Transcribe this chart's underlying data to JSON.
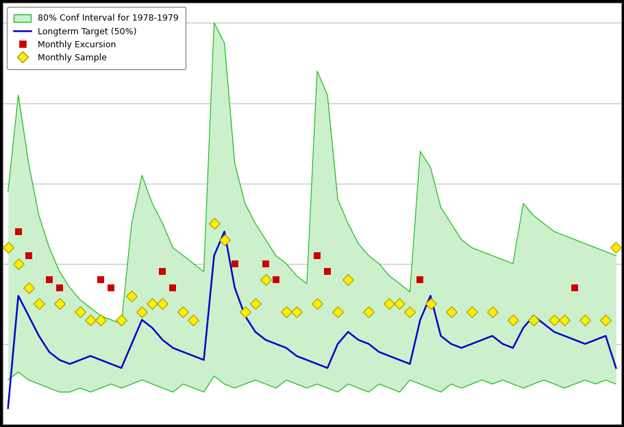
{
  "background_color": "#000000",
  "plot_bg": "#ffffff",
  "band_fill_color": "#ccf0cc",
  "band_edge_color": "#22bb22",
  "line_color": "#0000cc",
  "excursion_color": "#cc0000",
  "sample_facecolor": "#ffee00",
  "sample_edgecolor": "#999900",
  "grid_color": "#bbbbbb",
  "legend_labels": [
    "80% Conf Interval for 1978-1979",
    "Longterm Target (50%)",
    "Monthly Excursion",
    "Monthly Sample"
  ],
  "upper_band": [
    0.58,
    0.82,
    0.65,
    0.52,
    0.44,
    0.38,
    0.34,
    0.31,
    0.29,
    0.27,
    0.26,
    0.25,
    0.5,
    0.62,
    0.55,
    0.5,
    0.44,
    0.42,
    0.4,
    0.38,
    1.0,
    0.95,
    0.65,
    0.55,
    0.5,
    0.46,
    0.42,
    0.4,
    0.37,
    0.35,
    0.88,
    0.82,
    0.56,
    0.5,
    0.45,
    0.42,
    0.4,
    0.37,
    0.35,
    0.33,
    0.68,
    0.64,
    0.54,
    0.5,
    0.46,
    0.44,
    0.43,
    0.42,
    0.41,
    0.4,
    0.55,
    0.52,
    0.5,
    0.48,
    0.47,
    0.46,
    0.45,
    0.44,
    0.43,
    0.42
  ],
  "lower_band": [
    0.11,
    0.13,
    0.11,
    0.1,
    0.09,
    0.08,
    0.08,
    0.09,
    0.08,
    0.09,
    0.1,
    0.09,
    0.1,
    0.11,
    0.1,
    0.09,
    0.08,
    0.1,
    0.09,
    0.08,
    0.12,
    0.1,
    0.09,
    0.1,
    0.11,
    0.1,
    0.09,
    0.11,
    0.1,
    0.09,
    0.1,
    0.09,
    0.08,
    0.1,
    0.09,
    0.08,
    0.1,
    0.09,
    0.08,
    0.11,
    0.1,
    0.09,
    0.08,
    0.1,
    0.09,
    0.1,
    0.11,
    0.1,
    0.11,
    0.1,
    0.09,
    0.1,
    0.11,
    0.1,
    0.09,
    0.1,
    0.11,
    0.1,
    0.11,
    0.1
  ],
  "blue_line": [
    0.04,
    0.32,
    0.27,
    0.22,
    0.18,
    0.16,
    0.15,
    0.16,
    0.17,
    0.16,
    0.15,
    0.14,
    0.2,
    0.26,
    0.24,
    0.21,
    0.19,
    0.18,
    0.17,
    0.16,
    0.42,
    0.48,
    0.34,
    0.27,
    0.23,
    0.21,
    0.2,
    0.19,
    0.17,
    0.16,
    0.15,
    0.14,
    0.2,
    0.23,
    0.21,
    0.2,
    0.18,
    0.17,
    0.16,
    0.15,
    0.26,
    0.32,
    0.22,
    0.2,
    0.19,
    0.2,
    0.21,
    0.22,
    0.2,
    0.19,
    0.24,
    0.27,
    0.25,
    0.23,
    0.22,
    0.21,
    0.2,
    0.21,
    0.22,
    0.14
  ],
  "excursion_x": [
    1,
    2,
    4,
    5,
    9,
    10,
    15,
    16,
    22,
    25,
    26,
    30,
    31,
    40,
    55
  ],
  "excursion_y": [
    0.48,
    0.42,
    0.36,
    0.34,
    0.36,
    0.34,
    0.38,
    0.34,
    0.4,
    0.4,
    0.36,
    0.42,
    0.38,
    0.36,
    0.34
  ],
  "sample_x": [
    0,
    1,
    2,
    3,
    5,
    7,
    8,
    9,
    11,
    12,
    13,
    14,
    15,
    17,
    18,
    20,
    21,
    23,
    24,
    25,
    27,
    28,
    30,
    32,
    33,
    35,
    37,
    38,
    39,
    41,
    43,
    45,
    47,
    49,
    51,
    53,
    54,
    56,
    58,
    59
  ],
  "sample_y": [
    0.44,
    0.4,
    0.34,
    0.3,
    0.3,
    0.28,
    0.26,
    0.26,
    0.26,
    0.32,
    0.28,
    0.3,
    0.3,
    0.28,
    0.26,
    0.5,
    0.46,
    0.28,
    0.3,
    0.36,
    0.28,
    0.28,
    0.3,
    0.28,
    0.36,
    0.28,
    0.3,
    0.3,
    0.28,
    0.3,
    0.28,
    0.28,
    0.28,
    0.26,
    0.26,
    0.26,
    0.26,
    0.26,
    0.26,
    0.44
  ],
  "ylim": [
    0.0,
    1.05
  ],
  "xlim": [
    -0.5,
    59.5
  ]
}
